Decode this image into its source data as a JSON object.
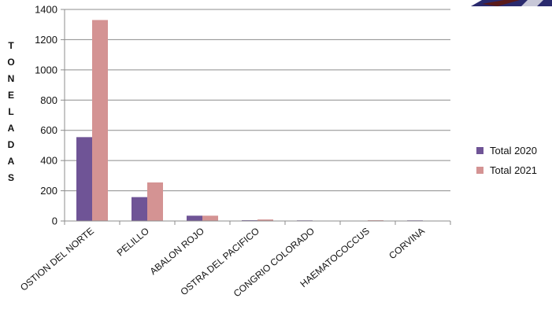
{
  "chart_data": {
    "type": "bar",
    "ylabel": "TONELADAS",
    "ylim": [
      0,
      1400
    ],
    "yticks": [
      0,
      200,
      400,
      600,
      800,
      1000,
      1200,
      1400
    ],
    "grid": true,
    "legend_position": "right",
    "categories": [
      "OSTION DEL NORTE",
      "PELILLO",
      "ABALON ROJO",
      "OSTRA DEL PACIFICO",
      "CONGRIO COLORADO",
      "HAEMATOCOCCUS",
      "CORVINA"
    ],
    "series": [
      {
        "name": "Total 2020",
        "color": "#6f5496",
        "values": [
          555,
          158,
          35,
          5,
          4,
          0,
          4
        ]
      },
      {
        "name": "Total 2021",
        "color": "#d49393",
        "values": [
          1330,
          255,
          35,
          10,
          0,
          5,
          0
        ]
      }
    ]
  },
  "decoration": {
    "name": "logo-corner-fragment-icon"
  }
}
